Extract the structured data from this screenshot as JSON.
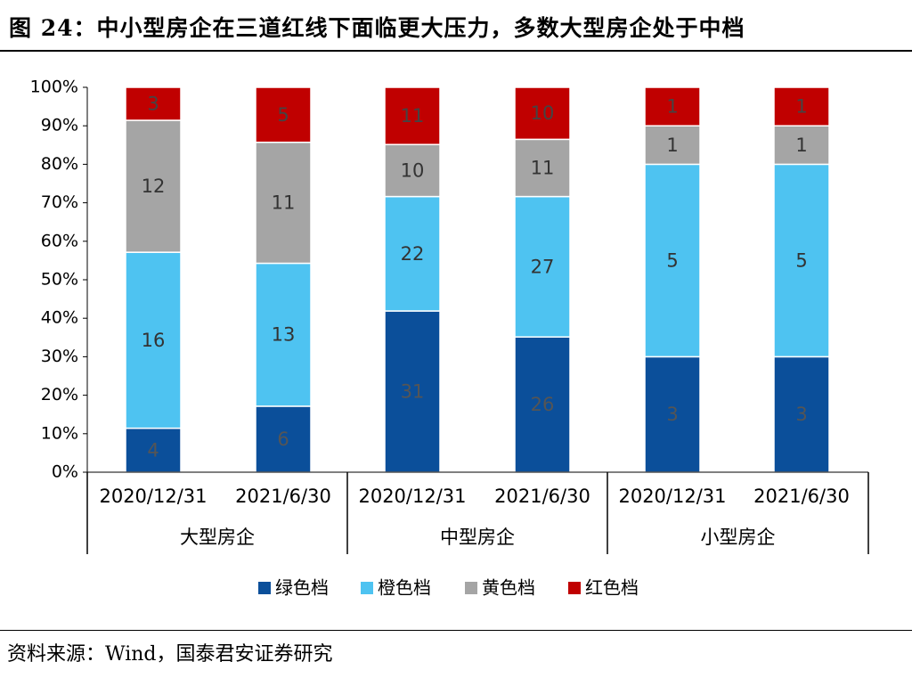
{
  "title": "图 24：中小型房企在三道红线下面临更大压力，多数大型房企处于中档",
  "source": "资料来源：Wind，国泰君安证券研究",
  "colors": {
    "green": "#0b4f9a",
    "orange": "#4ec3f1",
    "yellow": "#a5a5a5",
    "red": "#c00000"
  },
  "chart_data": {
    "type": "bar",
    "stacked": "percent",
    "ylim": [
      0,
      100
    ],
    "yticks": [
      "0%",
      "10%",
      "20%",
      "30%",
      "40%",
      "50%",
      "60%",
      "70%",
      "80%",
      "90%",
      "100%"
    ],
    "groups": [
      "大型房企",
      "中型房企",
      "小型房企"
    ],
    "categories": [
      "2020/12/31",
      "2021/6/30",
      "2020/12/31",
      "2021/6/30",
      "2020/12/31",
      "2021/6/30"
    ],
    "legend_position": "bottom",
    "series": [
      {
        "name": "绿色档",
        "values": [
          4,
          6,
          31,
          26,
          3,
          3
        ]
      },
      {
        "name": "橙色档",
        "values": [
          16,
          13,
          22,
          27,
          5,
          5
        ]
      },
      {
        "name": "黄色档",
        "values": [
          12,
          11,
          10,
          11,
          1,
          1
        ]
      },
      {
        "name": "红色档",
        "values": [
          3,
          5,
          11,
          10,
          1,
          1
        ]
      }
    ]
  }
}
